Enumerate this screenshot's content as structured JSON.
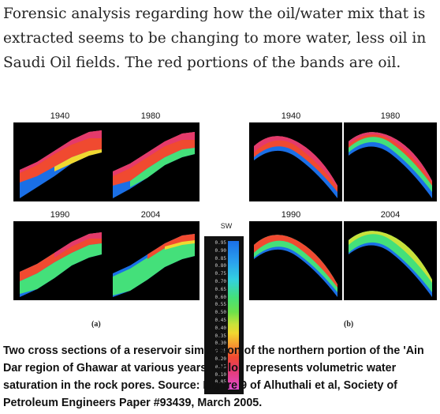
{
  "intro_text": "Forensic analysis regarding how the oil/water mix that is extracted seems to be changing to more water, less oil in Saudi Oil fields. The red portions of the bands are oil.",
  "figure": {
    "panel_a_label": "(a)",
    "panel_b_label": "(b)",
    "legend_title": "SW",
    "legend_ticks": [
      "0.95",
      "0.90",
      "0.85",
      "0.80",
      "0.75",
      "0.70",
      "0.65",
      "0.60",
      "0.55",
      "0.50",
      "0.45",
      "0.40",
      "0.35",
      "0.30",
      "0.25",
      "0.20",
      "0.15",
      "0.10",
      "0.05"
    ],
    "maps_a": [
      {
        "year": "1940"
      },
      {
        "year": "1980"
      },
      {
        "year": "1990"
      },
      {
        "year": "2004"
      }
    ],
    "maps_b": [
      {
        "year": "1940"
      },
      {
        "year": "1980"
      },
      {
        "year": "1990"
      },
      {
        "year": "2004"
      }
    ]
  },
  "caption": "Two cross sections of a reservoir simulation of the northern portion of the 'Ain Dar region of Ghawar at various years. Color represents volumetric water saturation in the rock pores. Source: Figure 9 of Alhuthali et al, Society of Petroleum Engineers Paper #93439, March 2005."
}
